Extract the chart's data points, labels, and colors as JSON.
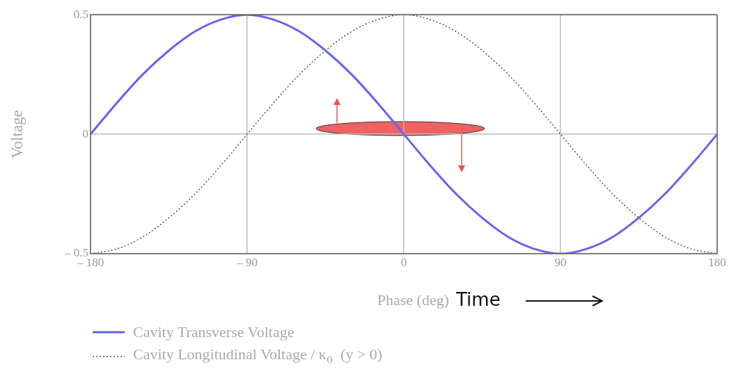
{
  "chart_data": {
    "type": "line",
    "xlabel": "Phase (deg)",
    "ylabel": "Voltage",
    "x": [
      -180,
      -165,
      -150,
      -135,
      -120,
      -105,
      -90,
      -75,
      -60,
      -45,
      -30,
      -15,
      0,
      15,
      30,
      45,
      60,
      75,
      90,
      105,
      120,
      135,
      150,
      165,
      180
    ],
    "series": [
      {
        "name": "Cavity Transverse Voltage",
        "color": "#6464f0",
        "line_style": "solid",
        "values": [
          0,
          0.13,
          0.25,
          0.35,
          0.43,
          0.48,
          0.5,
          0.48,
          0.43,
          0.35,
          0.25,
          0.13,
          0,
          -0.13,
          -0.25,
          -0.35,
          -0.43,
          -0.48,
          -0.5,
          -0.48,
          -0.43,
          -0.35,
          -0.25,
          -0.13,
          0
        ]
      },
      {
        "name": "Cavity Longitudinal Voltage / κ$_{o}$  (y > 0)",
        "color": "#555555",
        "line_style": "dotted",
        "values": [
          -0.5,
          -0.48,
          -0.43,
          -0.35,
          -0.25,
          -0.13,
          0,
          0.13,
          0.25,
          0.35,
          0.43,
          0.48,
          0.5,
          0.48,
          0.43,
          0.35,
          0.25,
          0.13,
          0,
          -0.13,
          -0.25,
          -0.35,
          -0.43,
          -0.48,
          -0.5
        ]
      }
    ],
    "xlim": [
      -180,
      180
    ],
    "xticks": [
      {
        "value": -180,
        "label": "– 180"
      },
      {
        "value": -90,
        "label": "– 90"
      },
      0,
      90,
      180
    ],
    "ylim": [
      -0.5,
      0.5
    ],
    "yticks": [
      {
        "value": -0.5,
        "label": "– 0.5"
      },
      0,
      0.5
    ],
    "grid": true,
    "legend": "bottom",
    "marker": "none",
    "annotations": [
      "Time"
    ]
  }
}
